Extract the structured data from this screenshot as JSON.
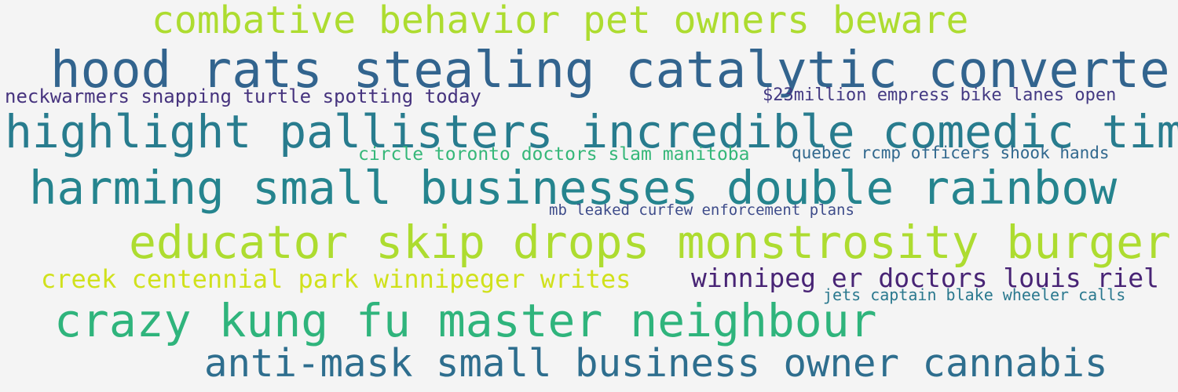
{
  "phrases": [
    {
      "text": "combative behavior pet owners beware",
      "color": "#addc30"
    },
    {
      "text": "hood rats stealing catalytic converters",
      "color": "#32648e"
    },
    {
      "text": "neckwarmers snapping turtle spotting today",
      "color": "#46337e"
    },
    {
      "text": "$23million empress bike lanes open",
      "color": "#443a83"
    },
    {
      "text": "highlight pallisters incredible comedic timing",
      "color": "#287c8e"
    },
    {
      "text": "circle toronto doctors slam manitoba",
      "color": "#35b779"
    },
    {
      "text": "quebec rcmp officers shook hands",
      "color": "#31688e"
    },
    {
      "text": "harming small businesses double rainbow",
      "color": "#25848e"
    },
    {
      "text": "mb leaked curfew enforcement plans",
      "color": "#3e4c8a"
    },
    {
      "text": "educator skip drops monstrosity burger",
      "color": "#addc30"
    },
    {
      "text": "creek centennial park winnipeger writes",
      "color": "#d0e11c"
    },
    {
      "text": "winnipeg er doctors louis riel",
      "color": "#482475"
    },
    {
      "text": "jets captain blake wheeler calls",
      "color": "#2a788e"
    },
    {
      "text": "crazy kung fu master neighbour",
      "color": "#2fb47c"
    },
    {
      "text": "anti-mask small business owner cannabis",
      "color": "#2e6e8e"
    }
  ]
}
